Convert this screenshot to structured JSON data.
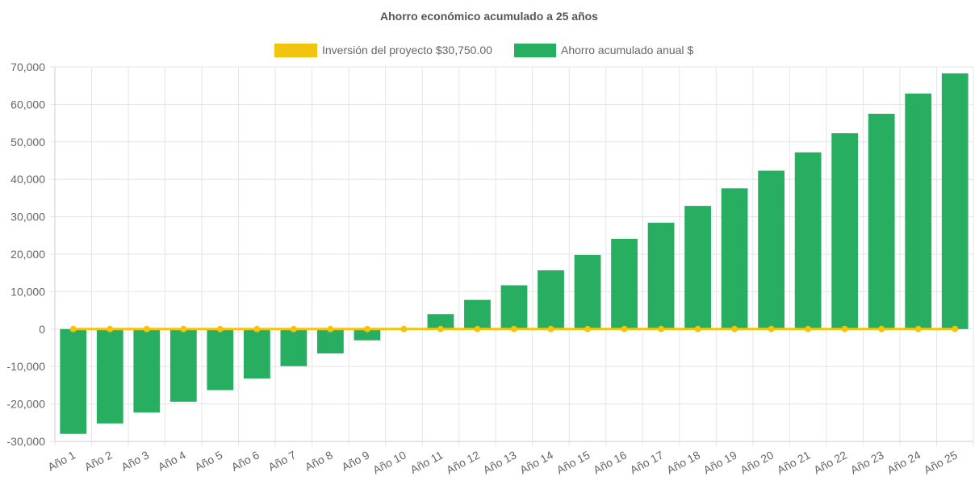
{
  "chart_data": {
    "type": "bar",
    "title": "Ahorro económico acumulado a 25 años",
    "categories": [
      "Año 1",
      "Año 2",
      "Año 3",
      "Año 4",
      "Año 5",
      "Año 6",
      "Año 7",
      "Año 8",
      "Año 9",
      "Año 10",
      "Año 11",
      "Año 12",
      "Año 13",
      "Año 14",
      "Año 15",
      "Año 16",
      "Año 17",
      "Año 18",
      "Año 19",
      "Año 20",
      "Año 21",
      "Año 22",
      "Año 23",
      "Año 24",
      "Año 25"
    ],
    "series": [
      {
        "name": "Inversión del proyecto $30,750.00",
        "kind": "line",
        "color": "#f1c40f",
        "values": [
          0,
          0,
          0,
          0,
          0,
          0,
          0,
          0,
          0,
          0,
          0,
          0,
          0,
          0,
          0,
          0,
          0,
          0,
          0,
          0,
          0,
          0,
          0,
          0,
          0
        ]
      },
      {
        "name": "Ahorro acumulado anual $",
        "kind": "bar",
        "color": "#27ae60",
        "values": [
          -28000,
          -25200,
          -22300,
          -19400,
          -16300,
          -13200,
          -9900,
          -6500,
          -3000,
          200,
          4000,
          7800,
          11700,
          15700,
          19800,
          24100,
          28400,
          32900,
          37600,
          42300,
          47200,
          52300,
          57500,
          62900,
          68300
        ]
      }
    ],
    "ylim": [
      -30000,
      70000
    ],
    "yticks": [
      -30000,
      -20000,
      -10000,
      0,
      10000,
      20000,
      30000,
      40000,
      50000,
      60000,
      70000
    ],
    "ytick_labels": [
      "-30,000",
      "-20,000",
      "-10,000",
      "0",
      "10,000",
      "20,000",
      "30,000",
      "40,000",
      "50,000",
      "60,000",
      "70,000"
    ],
    "grid": true,
    "legend_position": "top"
  }
}
